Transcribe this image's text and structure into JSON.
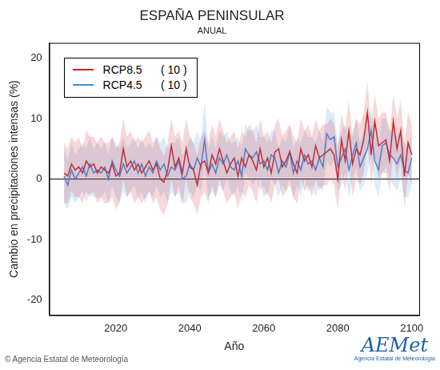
{
  "chart_data": {
    "type": "line",
    "title": "ESPAÑA PENINSULAR",
    "subtitle": "ANUAL",
    "x_label": "Año",
    "y_label": "Cambio en precipitaciones intensas (%)",
    "source": "© Agencia Estatal de Meteorología",
    "logo_text": "AEMet",
    "logo_subtitle": "Agencia Estatal de Meteorología",
    "x": [
      2006,
      2007,
      2008,
      2009,
      2010,
      2011,
      2012,
      2013,
      2014,
      2015,
      2016,
      2017,
      2018,
      2019,
      2020,
      2021,
      2022,
      2023,
      2024,
      2025,
      2026,
      2027,
      2028,
      2029,
      2030,
      2031,
      2032,
      2033,
      2034,
      2035,
      2036,
      2037,
      2038,
      2039,
      2040,
      2041,
      2042,
      2043,
      2044,
      2045,
      2046,
      2047,
      2048,
      2049,
      2050,
      2051,
      2052,
      2053,
      2054,
      2055,
      2056,
      2057,
      2058,
      2059,
      2060,
      2061,
      2062,
      2063,
      2064,
      2065,
      2066,
      2067,
      2068,
      2069,
      2070,
      2071,
      2072,
      2073,
      2074,
      2075,
      2076,
      2077,
      2078,
      2079,
      2080,
      2081,
      2082,
      2083,
      2084,
      2085,
      2086,
      2087,
      2088,
      2089,
      2090,
      2091,
      2092,
      2093,
      2094,
      2095,
      2096,
      2097,
      2098,
      2099,
      2100
    ],
    "series": [
      {
        "name": "RCP8.5      ( 10 )",
        "color": "#d42020",
        "values": [
          1,
          0.5,
          2.5,
          1.5,
          2,
          1,
          3,
          2,
          2.5,
          1,
          2,
          1.5,
          1,
          2.5,
          0.5,
          1,
          5,
          2,
          3,
          1.5,
          2.5,
          1,
          2,
          3,
          1.5,
          2.5,
          0,
          -0.5,
          1.5,
          5.5,
          2,
          3.5,
          1,
          5,
          2,
          1.5,
          -1,
          2.5,
          3,
          1,
          4,
          2.5,
          5,
          3,
          1,
          2.5,
          3.5,
          0.5,
          3.5,
          2,
          4,
          3,
          1.5,
          5,
          2,
          3.5,
          1,
          4.5,
          5,
          2,
          3,
          4.5,
          2.5,
          1,
          5,
          3,
          4,
          2,
          5.5,
          3.5,
          4,
          4.5,
          5,
          4,
          0,
          6.5,
          3,
          8,
          2.5,
          5,
          4,
          6.5,
          11,
          4,
          9.5,
          5.5,
          6,
          6.5,
          3,
          9.5,
          5,
          8,
          0.5,
          6,
          4
        ],
        "upper": [
          6,
          5,
          7,
          6,
          7,
          5,
          8,
          7,
          7,
          6,
          7,
          6,
          6,
          7,
          5,
          6,
          10,
          7,
          8,
          6,
          7,
          6,
          7,
          8,
          6,
          7,
          5,
          4,
          6,
          10,
          7,
          8,
          6,
          10,
          7,
          6,
          4,
          7,
          8,
          6,
          9,
          7,
          10,
          8,
          6,
          7,
          8,
          5,
          8,
          7,
          9,
          8,
          6,
          10,
          7,
          8,
          6,
          9,
          10,
          7,
          8,
          9,
          7,
          6,
          10,
          8,
          9,
          7,
          10,
          8,
          9,
          9,
          10,
          9,
          5,
          11,
          8,
          13,
          7,
          10,
          9,
          11,
          16,
          9,
          14,
          10,
          11,
          11,
          8,
          14,
          10,
          13,
          6,
          11,
          9
        ],
        "lower": [
          -4,
          -4,
          -2,
          -3,
          -3,
          -4,
          -2,
          -3,
          -2,
          -4,
          -3,
          -4,
          -4,
          -3,
          -5,
          -4,
          0,
          -3,
          -2,
          -4,
          -3,
          -4,
          -3,
          -2,
          -4,
          -3,
          -5,
          -6,
          -4,
          0,
          -3,
          -2,
          -4,
          0,
          -3,
          -4,
          -6,
          -3,
          -2,
          -4,
          -1,
          -3,
          0,
          -2,
          -4,
          -3,
          -2,
          -5,
          -2,
          -3,
          -1,
          -2,
          -4,
          0,
          -3,
          -2,
          -4,
          -1,
          0,
          -3,
          -2,
          -1,
          -3,
          -4,
          0,
          -2,
          -1,
          -3,
          0,
          -2,
          -1,
          -1,
          0,
          -1,
          -5,
          1,
          -2,
          3,
          -3,
          0,
          -1,
          1,
          6,
          -1,
          4,
          0,
          1,
          1,
          -2,
          4,
          0,
          3,
          -5,
          1,
          -1
        ]
      },
      {
        "name": "RCP4.5      ( 10 )",
        "color": "#3a8ee6",
        "values": [
          0.5,
          -1,
          1.5,
          0,
          1,
          2,
          0.5,
          2.5,
          1,
          1.5,
          1,
          2,
          0,
          3,
          1.5,
          0.5,
          2.5,
          1,
          2,
          3,
          1,
          2.5,
          0.5,
          2,
          1,
          3,
          1.5,
          2.5,
          0.5,
          2,
          1.5,
          3,
          0,
          0.5,
          2.5,
          1.5,
          3.5,
          2,
          6.5,
          1,
          2.5,
          1,
          3.5,
          2.5,
          4,
          2,
          1.5,
          3,
          0.5,
          5,
          4,
          3.5,
          4.5,
          2.5,
          3,
          1.5,
          4,
          3.5,
          1,
          3,
          2,
          4.5,
          1,
          3,
          1.5,
          4,
          2.5,
          3,
          1.5,
          3.5,
          2,
          7.5,
          6.5,
          7,
          2,
          3.5,
          5,
          1.5,
          4,
          6,
          2,
          3.5,
          5,
          8,
          3,
          1.5,
          5.5,
          6,
          4,
          3.5,
          2.5,
          4,
          1.5,
          1,
          3.5
        ],
        "upper": [
          5,
          3,
          6,
          4,
          5,
          6,
          5,
          7,
          5,
          6,
          5,
          6,
          4,
          7,
          6,
          5,
          7,
          5,
          6,
          7,
          5,
          7,
          5,
          6,
          5,
          7,
          6,
          7,
          5,
          6,
          6,
          7,
          4,
          5,
          7,
          6,
          8,
          6,
          13,
          5,
          7,
          5,
          8,
          7,
          8,
          6,
          6,
          7,
          5,
          9,
          8,
          8,
          9,
          7,
          7,
          6,
          8,
          8,
          5,
          7,
          6,
          9,
          5,
          7,
          6,
          8,
          7,
          7,
          6,
          8,
          6,
          12,
          11,
          11,
          6,
          8,
          9,
          6,
          8,
          10,
          6,
          8,
          9,
          12,
          7,
          6,
          10,
          10,
          8,
          8,
          7,
          8,
          6,
          5,
          8
        ],
        "lower": [
          -4,
          -5,
          -3,
          -4,
          -3,
          -2,
          -4,
          -2,
          -3,
          -3,
          -3,
          -2,
          -4,
          -1,
          -3,
          -4,
          -2,
          -3,
          -2,
          -1,
          -3,
          -2,
          -4,
          -2,
          -3,
          -1,
          -3,
          -2,
          -4,
          -2,
          -3,
          -1,
          -4,
          -4,
          -2,
          -3,
          -1,
          -2,
          2,
          -3,
          -2,
          -3,
          -1,
          -2,
          0,
          -2,
          -3,
          -1,
          -4,
          1,
          0,
          -1,
          0,
          -2,
          -1,
          -3,
          0,
          -1,
          -3,
          -1,
          -2,
          0,
          -3,
          -1,
          -3,
          0,
          -2,
          -1,
          -3,
          -1,
          -2,
          3,
          2,
          3,
          -2,
          -1,
          1,
          -3,
          0,
          2,
          -2,
          -1,
          1,
          4,
          -1,
          -3,
          1,
          2,
          0,
          -1,
          -2,
          0,
          -3,
          -3,
          -1
        ]
      }
    ],
    "reference_line": 0,
    "xlim": [
      2002,
      2102
    ],
    "xticks": [
      2020,
      2040,
      2060,
      2080,
      2100
    ],
    "ylim": [
      -22.5,
      22.5
    ],
    "yticks": [
      -20,
      -10,
      0,
      10,
      20
    ],
    "grid": false,
    "legend": "top-left"
  }
}
